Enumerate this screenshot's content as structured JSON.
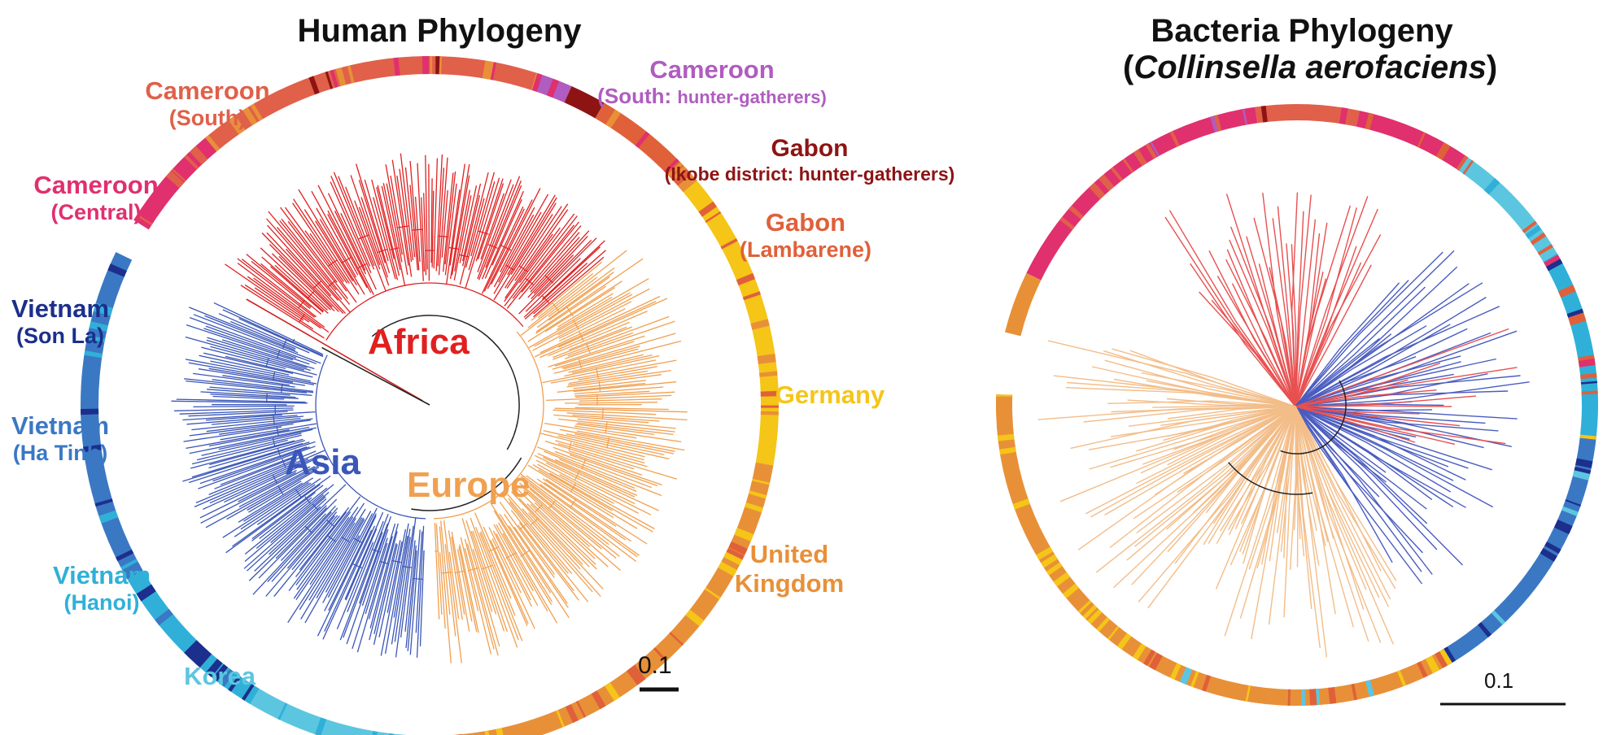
{
  "human": {
    "title": "Human Phylogeny",
    "regions": {
      "africa": "Africa",
      "asia": "Asia",
      "europe": "Europe"
    },
    "scale_label": "0.1",
    "countries": {
      "cameroon_south": {
        "line1": "Cameroon",
        "line2": "(South)"
      },
      "cameroon_hg": {
        "line1": "Cameroon",
        "line2a": "(South: ",
        "line2b": "hunter-gatherers)"
      },
      "cameroon_central": {
        "line1": "Cameroon",
        "line2": "(Central)"
      },
      "gabon_ikobe": {
        "line1": "Gabon",
        "line2": "(Ikobe district: hunter-gatherers)"
      },
      "gabon_lambarene": {
        "line1": "Gabon",
        "line2": "(Lambarene)"
      },
      "germany": {
        "line1": "Germany"
      },
      "uk": {
        "line1": "United",
        "line2": "Kingdom"
      },
      "vietnam_sonla": {
        "line1": "Vietnam",
        "line2": "(Son La)"
      },
      "vietnam_hatinh": {
        "line1": "Vietnam",
        "line2": "(Ha Tinh)"
      },
      "vietnam_hanoi": {
        "line1": "Vietnam",
        "line2": "(Hanoi)"
      },
      "korea": {
        "line1": "Korea"
      }
    }
  },
  "bacteria": {
    "title_line1": "Bacteria Phylogeny",
    "title_open": "(",
    "title_italic": "Collinsella aerofaciens",
    "title_close": ")",
    "scale_label": "0.1"
  },
  "colors": {
    "cameroon_south": "#e0604a",
    "cameroon_hg": "#b05cc0",
    "cameroon_central": "#e0306e",
    "gabon_ikobe": "#8e1414",
    "gabon_lambarene": "#e0603a",
    "germany": "#f5c518",
    "uk": "#e89038",
    "vietnam_sonla": "#1c2f8c",
    "vietnam_hatinh": "#3a78c4",
    "vietnam_hanoi": "#30b0d8",
    "korea": "#5cc6e0",
    "africa": "#e02020",
    "asia": "#3a56b8",
    "europe": "#f0a050",
    "bacteria_red": "#e85050",
    "bacteria_blue": "#4a5cc0",
    "bacteria_peach": "#f3bd88"
  }
}
